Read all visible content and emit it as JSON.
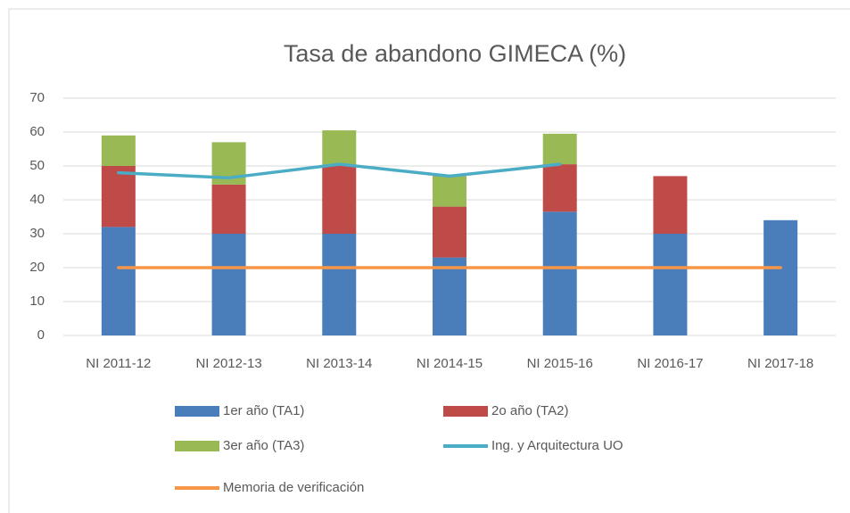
{
  "chart_data": {
    "type": "bar",
    "stacked": true,
    "title": "Tasa de abandono GIMECA (%)",
    "categories": [
      "NI 2011-12",
      "NI 2012-13",
      "NI 2013-14",
      "NI 2014-15",
      "NI 2015-16",
      "NI 2016-17",
      "NI 2017-18"
    ],
    "series": [
      {
        "name": "1er año (TA1)",
        "color": "#4a7ebb",
        "kind": "bar",
        "values": [
          32,
          30,
          30,
          23,
          36.5,
          30,
          34
        ]
      },
      {
        "name": "2o año (TA2)",
        "color": "#be4b48",
        "kind": "bar",
        "values": [
          18,
          14.5,
          20,
          15,
          14,
          17,
          null
        ]
      },
      {
        "name": "3er año (TA3)",
        "color": "#98b954",
        "kind": "bar",
        "values": [
          9,
          12.5,
          10.5,
          9.5,
          9,
          null,
          null
        ]
      },
      {
        "name": "Ing. y Arquitectura UO",
        "color": "#4bacc6",
        "kind": "line",
        "values": [
          48,
          46.5,
          50.5,
          47,
          50.5,
          null,
          null
        ]
      },
      {
        "name": "Memoria de verificación",
        "color": "#f79646",
        "kind": "line",
        "values": [
          20,
          20,
          20,
          20,
          20,
          20,
          20
        ]
      }
    ],
    "ylim": [
      0,
      70
    ],
    "yticks": [
      0,
      10,
      20,
      30,
      40,
      50,
      60,
      70
    ],
    "grid": true
  }
}
